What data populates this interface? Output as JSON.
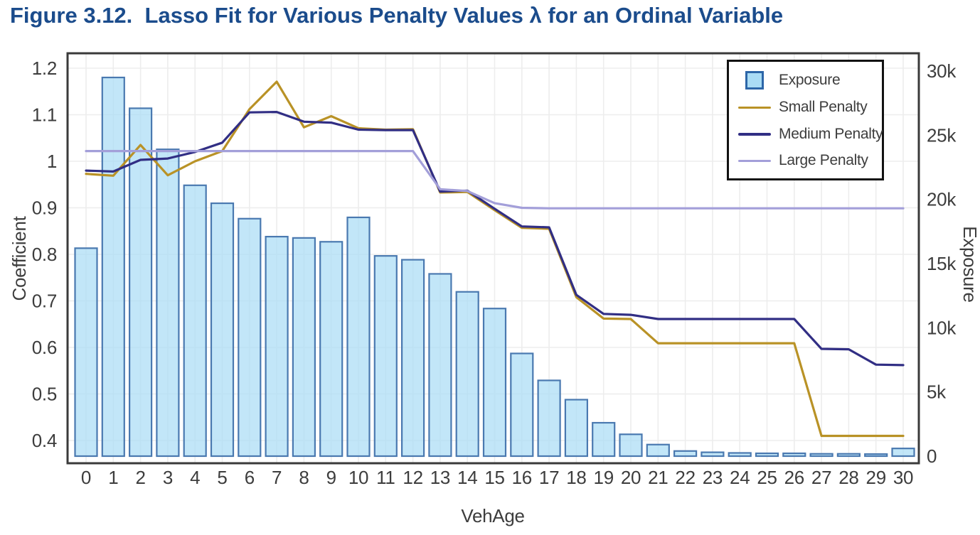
{
  "title": "Figure 3.12.  Lasso Fit for Various Penalty Values λ for an Ordinal Variable",
  "colors": {
    "title": "#1b4c8c",
    "text": "#3d3d3d",
    "grid": "#ededed",
    "frame": "#3a3a3a",
    "bar_fill": "#aadcf5",
    "bar_stroke": "#4a79b0",
    "swatch_border": "#2d66a8",
    "legend_border": "#121212",
    "small": "#b99226",
    "medium": "#312e84",
    "large": "#a39fd9"
  },
  "chart_data": {
    "type": "bar+line",
    "title": "",
    "x": [
      0,
      1,
      2,
      3,
      4,
      5,
      6,
      7,
      8,
      9,
      10,
      11,
      12,
      13,
      14,
      15,
      16,
      17,
      18,
      19,
      20,
      21,
      22,
      23,
      24,
      25,
      26,
      27,
      28,
      29,
      30
    ],
    "x_axis": {
      "label": "VehAge",
      "tick_labels": [
        "0",
        "1",
        "2",
        "3",
        "4",
        "5",
        "6",
        "7",
        "8",
        "9",
        "10",
        "11",
        "12",
        "13",
        "14",
        "15",
        "16",
        "17",
        "18",
        "19",
        "20",
        "21",
        "22",
        "23",
        "24",
        "25",
        "26",
        "27",
        "28",
        "29",
        "30"
      ]
    },
    "left_axis": {
      "label": "Coefficient",
      "min": 0.4,
      "max": 1.2,
      "tick_values": [
        0.4,
        0.5,
        0.6,
        0.7,
        0.8,
        0.9,
        1.0,
        1.1,
        1.2
      ],
      "tick_labels": [
        "0.4",
        "0.5",
        "0.6",
        "0.7",
        "0.8",
        "0.9",
        "1",
        "1.1",
        "1.2"
      ]
    },
    "right_axis": {
      "label": "Exposure",
      "min": 0,
      "max": 30000,
      "tick_values": [
        0,
        5000,
        10000,
        15000,
        20000,
        25000,
        30000
      ],
      "tick_labels": [
        "0",
        "5k",
        "10k",
        "15k",
        "20k",
        "25k",
        "30k"
      ]
    },
    "grid": "on",
    "bars": {
      "name": "Exposure",
      "axis": "right",
      "values": [
        16200,
        29500,
        27100,
        23900,
        21100,
        19700,
        18500,
        17100,
        17000,
        16700,
        18600,
        15600,
        15300,
        14200,
        12800,
        11500,
        8000,
        5900,
        4400,
        2600,
        1700,
        900,
        400,
        300,
        250,
        220,
        220,
        180,
        180,
        160,
        600
      ]
    },
    "series": [
      {
        "name": "Small Penalty",
        "axis": "left",
        "color_key": "small",
        "values": [
          0.973,
          0.969,
          1.035,
          0.97,
          1.0,
          1.022,
          1.112,
          1.171,
          1.073,
          1.097,
          1.071,
          1.068,
          1.069,
          0.933,
          0.934,
          0.895,
          0.857,
          0.855,
          0.708,
          0.662,
          0.661,
          0.609,
          0.609,
          0.609,
          0.609,
          0.609,
          0.609,
          0.41,
          0.41,
          0.41,
          0.41
        ]
      },
      {
        "name": "Medium Penalty",
        "axis": "left",
        "color_key": "medium",
        "values": [
          0.98,
          0.978,
          1.003,
          1.006,
          1.02,
          1.04,
          1.105,
          1.106,
          1.085,
          1.083,
          1.068,
          1.067,
          1.067,
          0.935,
          0.937,
          0.898,
          0.86,
          0.858,
          0.713,
          0.672,
          0.67,
          0.661,
          0.661,
          0.661,
          0.661,
          0.661,
          0.661,
          0.597,
          0.596,
          0.563,
          0.562
        ]
      },
      {
        "name": "Large Penalty",
        "axis": "left",
        "color_key": "large",
        "values": [
          1.022,
          1.022,
          1.022,
          1.022,
          1.022,
          1.022,
          1.022,
          1.022,
          1.022,
          1.022,
          1.022,
          1.022,
          1.022,
          0.94,
          0.936,
          0.91,
          0.9,
          0.899,
          0.899,
          0.899,
          0.899,
          0.899,
          0.899,
          0.899,
          0.899,
          0.899,
          0.899,
          0.899,
          0.899,
          0.899,
          0.899
        ]
      }
    ],
    "legend": {
      "position": "top-right",
      "items": [
        {
          "label": "Exposure",
          "swatch": "square",
          "color_key": "bar_fill"
        },
        {
          "label": "Small Penalty",
          "swatch": "line",
          "color_key": "small"
        },
        {
          "label": "Medium Penalty",
          "swatch": "line",
          "color_key": "medium"
        },
        {
          "label": "Large Penalty",
          "swatch": "line",
          "color_key": "large"
        }
      ]
    }
  }
}
